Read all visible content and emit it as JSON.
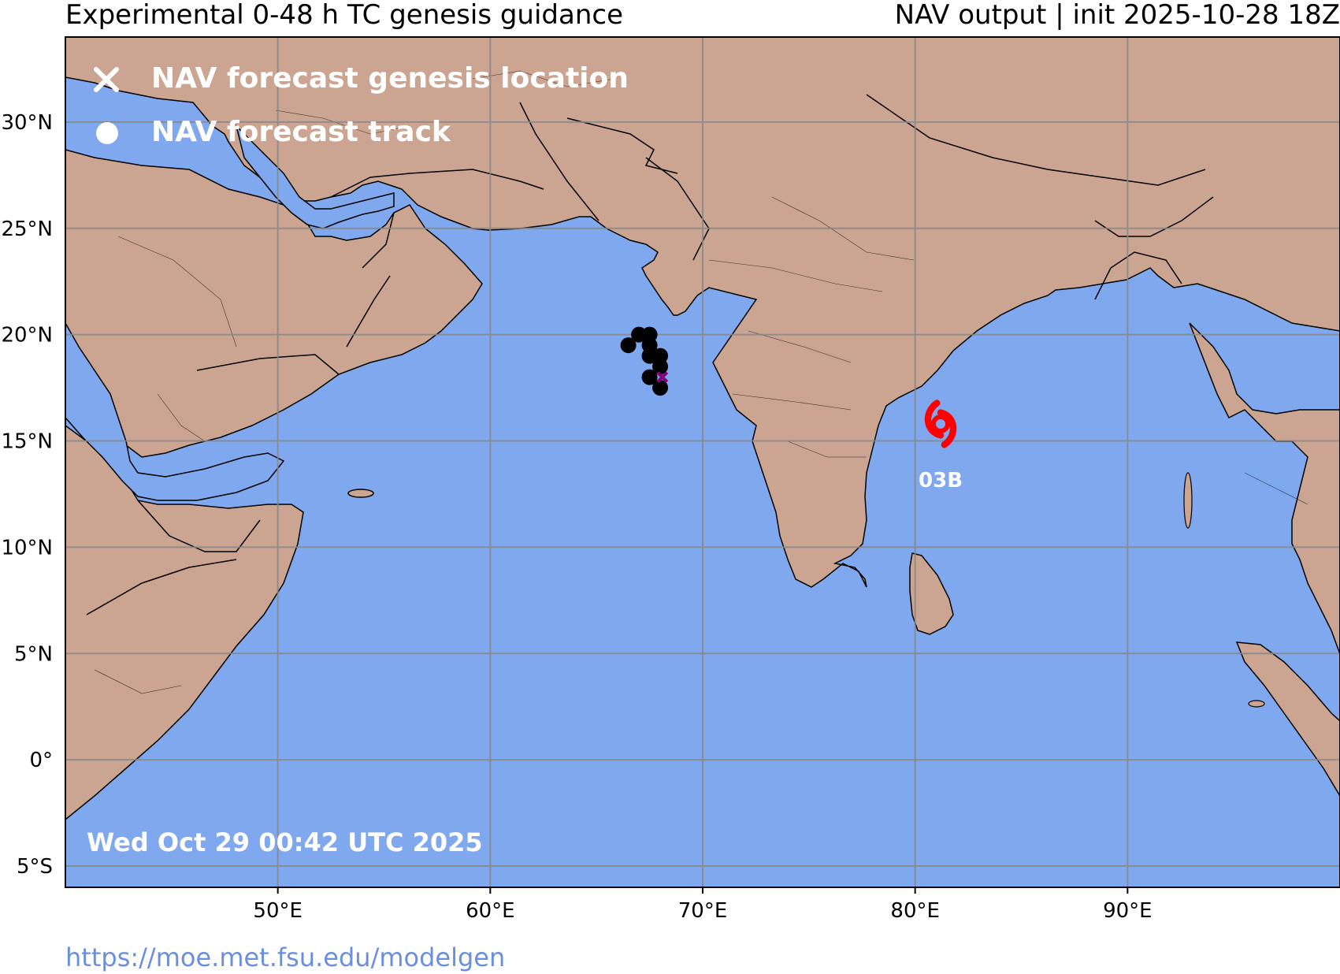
{
  "header": {
    "title_left": "Experimental 0-48 h TC genesis guidance",
    "title_right": "NAV output | init 2025-10-28 18Z"
  },
  "map": {
    "lon_range": [
      40,
      100
    ],
    "lat_range": [
      -6,
      34
    ],
    "lon_ticks": [
      {
        "value": 50,
        "label": "50°E"
      },
      {
        "value": 60,
        "label": "60°E"
      },
      {
        "value": 70,
        "label": "70°E"
      },
      {
        "value": 80,
        "label": "80°E"
      },
      {
        "value": 90,
        "label": "90°E"
      }
    ],
    "lat_ticks": [
      {
        "value": 30,
        "label": "30°N"
      },
      {
        "value": 25,
        "label": "25°N"
      },
      {
        "value": 20,
        "label": "20°N"
      },
      {
        "value": 15,
        "label": "15°N"
      },
      {
        "value": 10,
        "label": "10°N"
      },
      {
        "value": 5,
        "label": "5°N"
      },
      {
        "value": 0,
        "label": "0°"
      },
      {
        "value": -5,
        "label": "5°S"
      }
    ],
    "colors": {
      "ocean": "#80a8ee",
      "land": "#cba591",
      "grid": "#888888",
      "storm": "#ff0000",
      "track": "#000000",
      "genesis": "#800080"
    }
  },
  "legend": {
    "genesis_label": "NAV forecast genesis location",
    "track_label": "NAV forecast track"
  },
  "track_points": [
    {
      "lon": 67.0,
      "lat": 20.0
    },
    {
      "lon": 67.5,
      "lat": 20.0
    },
    {
      "lon": 66.5,
      "lat": 19.5
    },
    {
      "lon": 67.5,
      "lat": 19.5
    },
    {
      "lon": 67.5,
      "lat": 19.0
    },
    {
      "lon": 68.0,
      "lat": 19.0
    },
    {
      "lon": 68.0,
      "lat": 18.5
    },
    {
      "lon": 67.5,
      "lat": 18.0
    },
    {
      "lon": 68.0,
      "lat": 17.5
    }
  ],
  "genesis_point": {
    "lon": 68.1,
    "lat": 18.0
  },
  "storm": {
    "label": "03B",
    "lon": 81.2,
    "lat": 15.8
  },
  "timestamp": "Wed Oct 29 00:42 UTC 2025",
  "footer": {
    "url": "https://moe.met.fsu.edu/modelgen"
  }
}
